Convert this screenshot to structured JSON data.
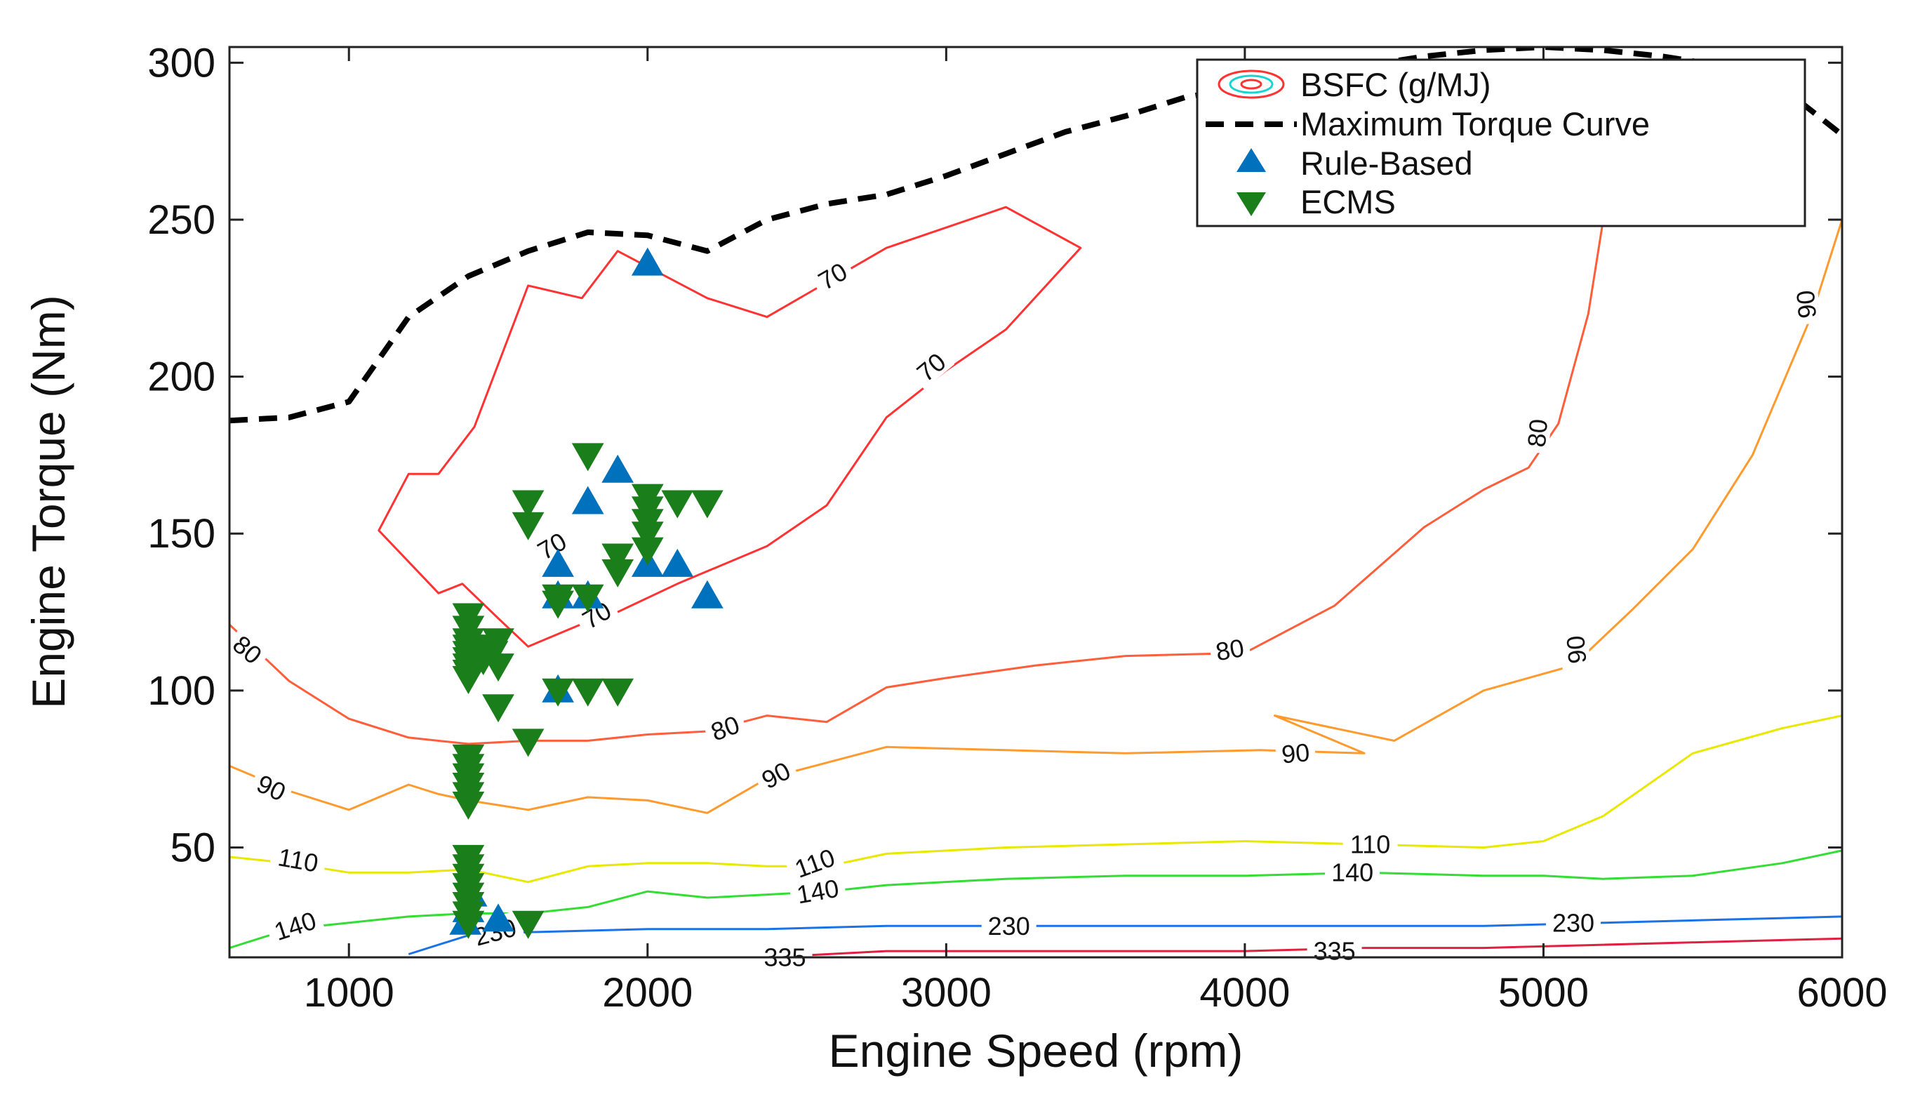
{
  "chart_data": {
    "type": "line",
    "title": "",
    "xlabel": "Engine Speed (rpm)",
    "ylabel": "Engine Torque (Nm)",
    "xlim": [
      600,
      6000
    ],
    "ylim": [
      15,
      305
    ],
    "x_ticks": [
      1000,
      2000,
      3000,
      4000,
      5000,
      6000
    ],
    "y_ticks": [
      50,
      100,
      150,
      200,
      250,
      300
    ],
    "grid": false,
    "legend": {
      "position": "top-right",
      "entries": [
        "BSFC (g/MJ)",
        "Maximum Torque Curve",
        "Rule-Based",
        "ECMS"
      ]
    },
    "colors": {
      "max_torque": "#000000",
      "rule_based": "#0072bd",
      "ecms": "#1a7f1a",
      "bsfc_legend_outer": "#ff3333",
      "bsfc_legend_inner": "#19d3d3"
    },
    "max_torque_curve": {
      "name": "Maximum Torque Curve",
      "x": [
        600,
        800,
        1000,
        1200,
        1400,
        1600,
        1800,
        2000,
        2200,
        2400,
        2600,
        2800,
        3000,
        3200,
        3400,
        3600,
        3800,
        4000,
        4200,
        4400,
        4600,
        4800,
        5000,
        5200,
        5400,
        5600,
        5800,
        6000
      ],
      "y": [
        186,
        187,
        192,
        219,
        232,
        240,
        246,
        245,
        240,
        250,
        255,
        258,
        264,
        271,
        278,
        283,
        289,
        292,
        296,
        299,
        302,
        304,
        305,
        304,
        302,
        299,
        292,
        277
      ]
    },
    "bsfc_contours": [
      {
        "level": "70",
        "color": "#ff3333",
        "closed": true,
        "x": [
          1600,
          1780,
          1900,
          2200,
          2400,
          2800,
          3200,
          3450,
          3200,
          3000,
          2800,
          2600,
          2400,
          2100,
          1900,
          1800,
          1600,
          1500,
          1380,
          1300,
          1100,
          1200,
          1300,
          1420
        ],
        "y": [
          229,
          225,
          240,
          225,
          219,
          241,
          254,
          241,
          215,
          202,
          187,
          159,
          146,
          134,
          125,
          122,
          114,
          123,
          134,
          131,
          151,
          169,
          169,
          184
        ]
      },
      {
        "level": "80",
        "color": "#ff5e3a",
        "closed": false,
        "x": [
          600,
          800,
          1000,
          1200,
          1400,
          1600,
          1800,
          2000,
          2200,
          2400,
          2600,
          2800,
          3000,
          3300,
          3600,
          4000,
          4300,
          4600,
          4800,
          4950,
          5050,
          5150,
          5200
        ],
        "y": [
          121,
          103,
          91,
          85,
          83,
          84,
          84,
          86,
          87,
          92,
          90,
          101,
          104,
          108,
          111,
          112,
          127,
          152,
          164,
          171,
          185,
          220,
          250
        ]
      },
      {
        "level": "90",
        "color": "#ff9a2e",
        "closed": false,
        "x": [
          600,
          800,
          1000,
          1100,
          1200,
          1300,
          1400,
          1600,
          1800,
          2000,
          2200,
          2400,
          2600,
          2800,
          3200,
          3600,
          4050,
          4400,
          4100,
          4500,
          4800,
          5100,
          5300,
          5500,
          5700,
          5900,
          6000
        ],
        "y": [
          76,
          68,
          62,
          66,
          70,
          67,
          65,
          62,
          66,
          65,
          61,
          72,
          77,
          82,
          81,
          80,
          81,
          80,
          92,
          84,
          100,
          108,
          126,
          145,
          175,
          220,
          250
        ]
      },
      {
        "level": "110",
        "color": "#e8e800",
        "closed": false,
        "x": [
          600,
          800,
          1000,
          1200,
          1400,
          1600,
          1800,
          2000,
          2200,
          2400,
          2600,
          2800,
          3200,
          3600,
          4000,
          4400,
          4800,
          5000,
          5200,
          5500,
          5800,
          6000
        ],
        "y": [
          47,
          45,
          42,
          42,
          43,
          39,
          44,
          45,
          45,
          44,
          44,
          48,
          50,
          51,
          52,
          51,
          50,
          52,
          60,
          80,
          88,
          92
        ]
      },
      {
        "level": "140",
        "color": "#33dd33",
        "closed": false,
        "x": [
          600,
          800,
          1000,
          1200,
          1400,
          1600,
          1800,
          2000,
          2200,
          2400,
          2600,
          2800,
          3200,
          3600,
          4000,
          4400,
          4800,
          5000,
          5200,
          5500,
          5800,
          6000
        ],
        "y": [
          18,
          24,
          26,
          28,
          29,
          29,
          31,
          36,
          34,
          35,
          36,
          38,
          40,
          41,
          41,
          42,
          41,
          41,
          40,
          41,
          45,
          49
        ]
      },
      {
        "level": "230",
        "color": "#1a73e6",
        "closed": false,
        "x": [
          1200,
          1400,
          1600,
          2000,
          2400,
          2800,
          3200,
          3600,
          4000,
          4400,
          4800,
          5200,
          5600,
          6000
        ],
        "y": [
          16,
          22,
          23,
          24,
          24,
          25,
          25,
          25,
          25,
          25,
          25,
          26,
          27,
          28
        ]
      },
      {
        "level": "335",
        "color": "#e02040",
        "closed": false,
        "x": [
          2400,
          2800,
          3200,
          3600,
          4000,
          4400,
          4800,
          5200,
          5600,
          6000
        ],
        "y": [
          15,
          17,
          17,
          17,
          17,
          18,
          18,
          19,
          20,
          21
        ]
      }
    ],
    "contour_labels": [
      {
        "text": "70",
        "x": 1680,
        "y": 146,
        "angle": -30
      },
      {
        "text": "70",
        "x": 2620,
        "y": 232,
        "angle": -30
      },
      {
        "text": "70",
        "x": 2950,
        "y": 203,
        "angle": -40
      },
      {
        "text": "70",
        "x": 1830,
        "y": 124,
        "angle": -30
      },
      {
        "text": "80",
        "x": 660,
        "y": 113,
        "angle": 40
      },
      {
        "text": "80",
        "x": 2260,
        "y": 88,
        "angle": -20
      },
      {
        "text": "80",
        "x": 3950,
        "y": 113,
        "angle": -10
      },
      {
        "text": "80",
        "x": 4980,
        "y": 182,
        "angle": -85
      },
      {
        "text": "90",
        "x": 740,
        "y": 69,
        "angle": 25
      },
      {
        "text": "90",
        "x": 2430,
        "y": 73,
        "angle": -28
      },
      {
        "text": "90",
        "x": 4170,
        "y": 80,
        "angle": -5
      },
      {
        "text": "90",
        "x": 5110,
        "y": 113,
        "angle": -95
      },
      {
        "text": "90",
        "x": 5880,
        "y": 223,
        "angle": -95
      },
      {
        "text": "110",
        "x": 830,
        "y": 46,
        "angle": 10
      },
      {
        "text": "110",
        "x": 2560,
        "y": 45,
        "angle": -20
      },
      {
        "text": "110",
        "x": 4420,
        "y": 51,
        "angle": 0
      },
      {
        "text": "140",
        "x": 820,
        "y": 25,
        "angle": -18
      },
      {
        "text": "140",
        "x": 2570,
        "y": 36,
        "angle": -10
      },
      {
        "text": "140",
        "x": 4360,
        "y": 42,
        "angle": 0
      },
      {
        "text": "230",
        "x": 1490,
        "y": 23,
        "angle": -15
      },
      {
        "text": "230",
        "x": 3210,
        "y": 25,
        "angle": 0
      },
      {
        "text": "230",
        "x": 5100,
        "y": 26,
        "angle": 0
      },
      {
        "text": "335",
        "x": 2460,
        "y": 15,
        "angle": 0
      },
      {
        "text": "335",
        "x": 4300,
        "y": 17,
        "angle": 0
      }
    ],
    "series": [
      {
        "name": "Rule-Based",
        "marker": "triangle-up",
        "x": [
          1390,
          1400,
          1410,
          1500,
          1700,
          1700,
          1800,
          1800,
          1900,
          2000,
          2000,
          2100,
          2200,
          1700
        ],
        "y": [
          26,
          30,
          35,
          27,
          100,
          140,
          130,
          160,
          170,
          236,
          140,
          140,
          130,
          130
        ]
      },
      {
        "name": "ECMS",
        "marker": "triangle-down",
        "x": [
          1400,
          1400,
          1400,
          1400,
          1400,
          1400,
          1400,
          1400,
          1400,
          1400,
          1400,
          1400,
          1400,
          1400,
          1400,
          1400,
          1400,
          1400,
          1400,
          1400,
          1400,
          1400,
          1400,
          1450,
          1450,
          1480,
          1500,
          1500,
          1500,
          1600,
          1600,
          1600,
          1600,
          1700,
          1800,
          1900,
          1700,
          1800,
          1900,
          1900,
          2000,
          2000,
          2000,
          2000,
          2000,
          2100,
          2200,
          1800,
          1700
        ],
        "y": [
          26,
          29,
          32,
          35,
          38,
          41,
          44,
          47,
          64,
          67,
          70,
          73,
          76,
          79,
          104,
          108,
          112,
          116,
          120,
          124,
          114,
          110,
          106,
          114,
          110,
          112,
          95,
          108,
          116,
          26,
          84,
          153,
          160,
          100,
          100,
          100,
          130,
          130,
          138,
          143,
          145,
          150,
          154,
          158,
          162,
          160,
          160,
          175,
          128
        ]
      }
    ]
  }
}
